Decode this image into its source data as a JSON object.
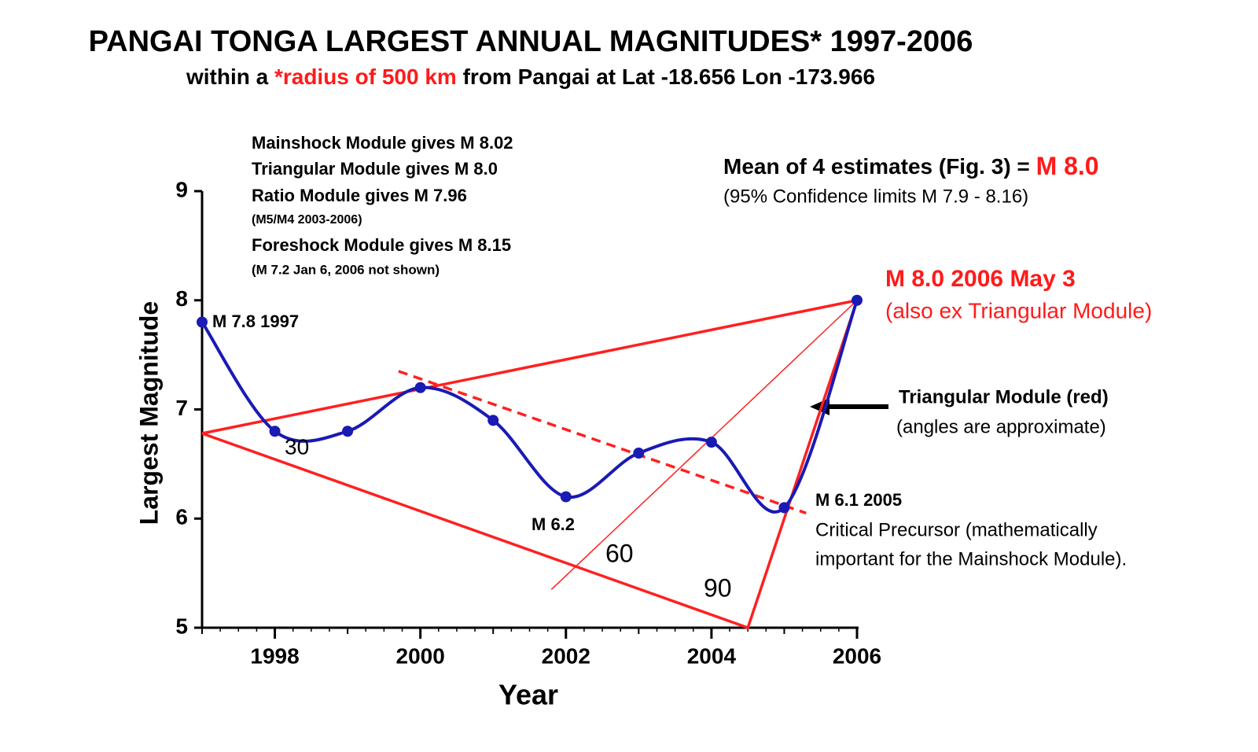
{
  "chart_data": {
    "type": "line",
    "title": "PANGAI TONGA LARGEST ANNUAL MAGNITUDES* 1997-2006",
    "subtitle_parts": [
      "within a ",
      "*radius of 500 km",
      " from Pangai at Lat -18.656 Lon -173.966"
    ],
    "x_label": "Year",
    "y_label": "Largest Magnitude",
    "x": [
      1997,
      1998,
      1999,
      2000,
      2001,
      2002,
      2003,
      2004,
      2005,
      2006
    ],
    "series": [
      {
        "color": "#1a1ab4",
        "values": [
          7.8,
          6.8,
          6.8,
          7.2,
          6.9,
          6.2,
          6.6,
          6.7,
          6.1,
          8.0
        ]
      }
    ],
    "xlim": [
      1997,
      2006
    ],
    "xticks": [
      1998,
      2000,
      2002,
      2004,
      2006
    ],
    "xminorticks": [
      1997,
      1999,
      2001,
      2003,
      2005
    ],
    "ylim": [
      5,
      9
    ],
    "yticks": [
      5,
      6,
      7,
      8,
      9
    ],
    "lines": [
      {
        "color": "#ff2020",
        "dash": false,
        "x": [
          1997,
          2006,
          2004.5,
          1997
        ],
        "y": [
          6.78,
          8.0,
          5.0,
          6.78
        ]
      },
      {
        "color": "#ff2020",
        "dash": true,
        "x": [
          1999.7,
          2005.3
        ],
        "y": [
          7.35,
          6.05
        ]
      },
      {
        "color": "#ff2020",
        "dash": false,
        "thin": true,
        "x": [
          2001.8,
          2006
        ],
        "y": [
          5.35,
          8.0
        ]
      }
    ],
    "mean_estimate": [
      "Mean of 4 estimates (Fig. 3) = ",
      "M 8.0"
    ],
    "annotations": [
      "Mainshock Module gives M 8.02",
      "Triangular Module gives M 8.0",
      "Ratio Module gives M 7.96",
      "(M5/M4 2003-2006)",
      "Foreshock Module gives M 8.15",
      "(M 7.2 Jan 6, 2006 not shown)",
      "(95% Confidence limits M 7.9 - 8.16)",
      "M 8.0 2006 May 3",
      "(also ex Triangular Module)",
      "Triangular Module (red)",
      "(angles are approximate)",
      "M 7.8 1997",
      "30",
      "M 6.2",
      "60",
      "90",
      "M 6.1 2005",
      "Critical Precursor (mathematically",
      "important for the Mainshock Module)."
    ]
  }
}
